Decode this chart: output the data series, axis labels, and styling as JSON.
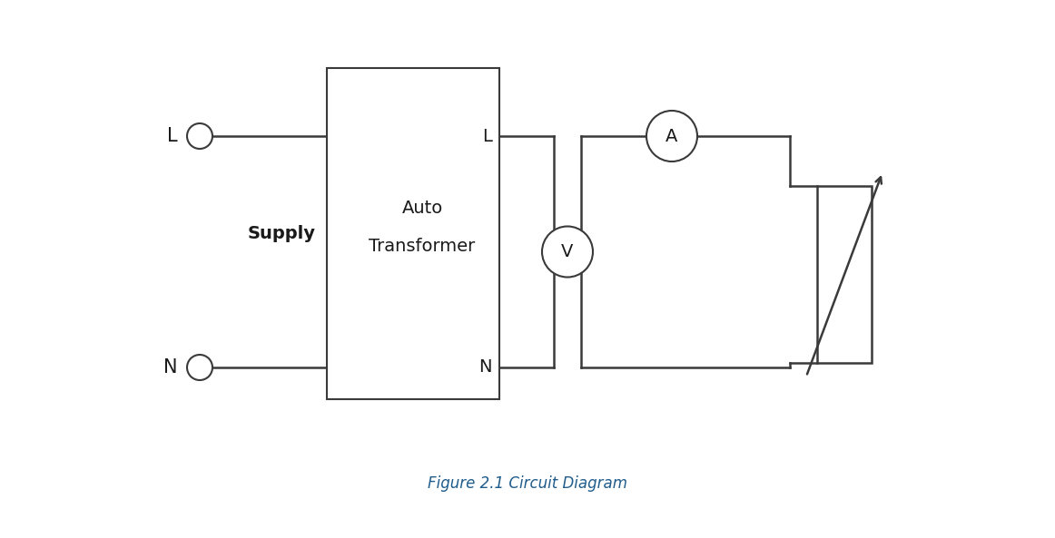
{
  "title": "Figure 2.1 Circuit Diagram",
  "title_color": "#1f5c8b",
  "bg_color": "#ffffff",
  "line_color": "#3a3a3a",
  "text_color": "#1a1a1a",
  "fig_width": 11.62,
  "fig_height": 5.93,
  "supply_label": "Supply",
  "transformer_label_line1": "Auto",
  "transformer_label_line2": "Transformer",
  "L_label": "L",
  "N_label": "N",
  "L_box_label": "L",
  "N_box_label": "N",
  "ammeter_label": "A",
  "voltmeter_label": "V",
  "caption_fontstyle": "italic"
}
